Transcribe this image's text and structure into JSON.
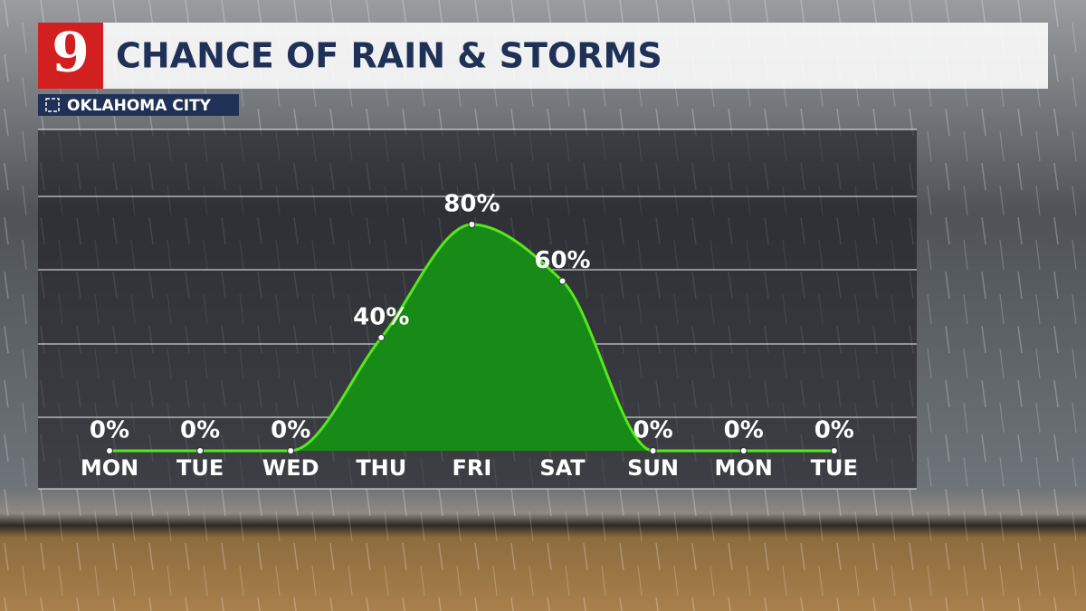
{
  "logo": "9",
  "chart_data": {
    "type": "area",
    "title": "CHANCE OF RAIN & STORMS",
    "subtitle": "OKLAHOMA CITY",
    "categories": [
      "MON",
      "TUE",
      "WED",
      "THU",
      "FRI",
      "SAT",
      "SUN",
      "MON",
      "TUE"
    ],
    "values": [
      0,
      0,
      0,
      40,
      80,
      60,
      0,
      0,
      0
    ],
    "value_labels": [
      "0%",
      "0%",
      "0%",
      "40%",
      "80%",
      "60%",
      "0%",
      "0%",
      "0%"
    ],
    "color": "#178a17",
    "line_color": "#55e81c",
    "ylim": [
      0,
      100
    ]
  }
}
